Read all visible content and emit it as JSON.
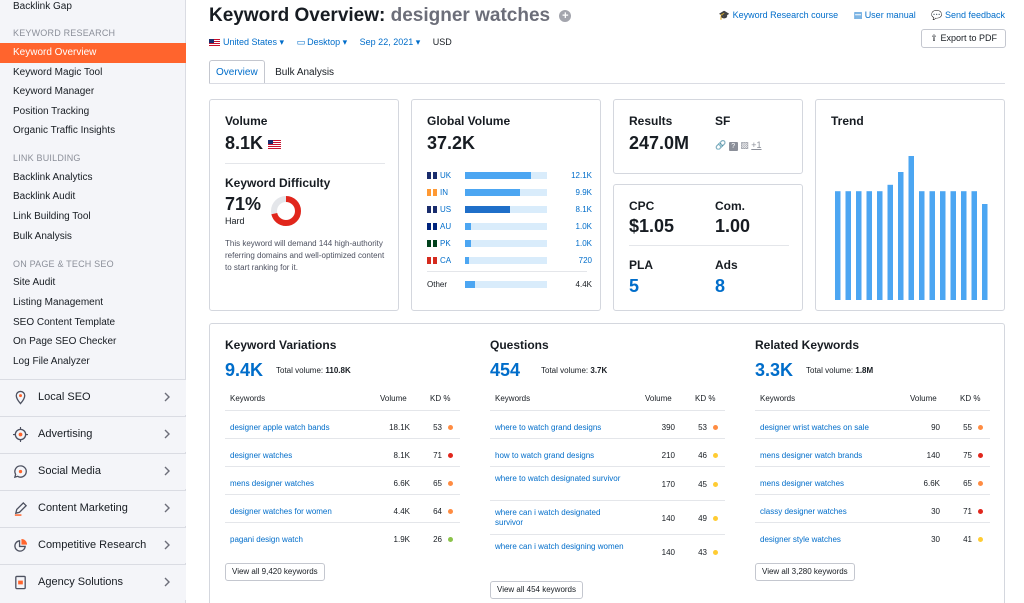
{
  "sidebar": {
    "top_item": "Backlink Gap",
    "sections": [
      {
        "title": "KEYWORD RESEARCH",
        "items": [
          "Keyword Overview",
          "Keyword Magic Tool",
          "Keyword Manager",
          "Position Tracking",
          "Organic Traffic Insights"
        ]
      },
      {
        "title": "LINK BUILDING",
        "items": [
          "Backlink Analytics",
          "Backlink Audit",
          "Link Building Tool",
          "Bulk Analysis"
        ]
      },
      {
        "title": "ON PAGE & TECH SEO",
        "items": [
          "Site Audit",
          "Listing Management",
          "SEO Content Template",
          "On Page SEO Checker",
          "Log File Analyzer"
        ]
      }
    ],
    "active_item": "Keyword Overview",
    "groups": [
      {
        "label": "Local SEO",
        "icon": "location-pin-icon"
      },
      {
        "label": "Advertising",
        "icon": "target-icon"
      },
      {
        "label": "Social Media",
        "icon": "chat-bubble-icon"
      },
      {
        "label": "Content Marketing",
        "icon": "pencil-icon"
      },
      {
        "label": "Competitive Research",
        "icon": "pie-chart-icon"
      },
      {
        "label": "Agency Solutions",
        "icon": "document-icon"
      }
    ]
  },
  "header": {
    "title_prefix": "Keyword Overview:",
    "query": "designer watches",
    "filters": {
      "country": "United States",
      "device": "Desktop",
      "date": "Sep 22, 2021",
      "currency": "USD"
    },
    "links": {
      "course": "Keyword Research course",
      "manual": "User manual",
      "feedback": "Send feedback"
    },
    "export": "Export to PDF"
  },
  "tabs": [
    "Overview",
    "Bulk Analysis"
  ],
  "volume": {
    "label": "Volume",
    "value": "8.1K"
  },
  "kd": {
    "label": "Keyword Difficulty",
    "value": "71%",
    "level": "Hard",
    "percent": 71,
    "description": "This keyword will demand 144 high-authority referring domains and well-optimized content to start ranking for it."
  },
  "global_volume": {
    "label": "Global Volume",
    "value": "37.2K",
    "countries": [
      {
        "code": "UK",
        "value": "12.1K",
        "share": 0.31
      },
      {
        "code": "IN",
        "value": "9.9K",
        "share": 0.26
      },
      {
        "code": "US",
        "value": "8.1K",
        "share": 0.21
      },
      {
        "code": "AU",
        "value": "1.0K",
        "share": 0.03
      },
      {
        "code": "PK",
        "value": "1.0K",
        "share": 0.03
      },
      {
        "code": "CA",
        "value": "720",
        "share": 0.02
      }
    ],
    "other": {
      "label": "Other",
      "value": "4.4K",
      "share": 0.12
    }
  },
  "results": {
    "label": "Results",
    "value": "247.0M",
    "sf_label": "SF",
    "sf_more": "+1"
  },
  "cpc": {
    "label": "CPC",
    "value": "$1.05",
    "com_label": "Com.",
    "com_value": "1.00",
    "pla_label": "PLA",
    "pla_value": "5",
    "ads_label": "Ads",
    "ads_value": "8"
  },
  "trend": {
    "label": "Trend",
    "values": [
      0.68,
      0.68,
      0.68,
      0.68,
      0.68,
      0.72,
      0.8,
      0.9,
      0.68,
      0.68,
      0.68,
      0.68,
      0.68,
      0.68,
      0.6
    ]
  },
  "variations": {
    "label": "Keyword Variations",
    "count": "9.4K",
    "total_label": "Total volume:",
    "total": "110.8K",
    "cols": [
      "Keywords",
      "Volume",
      "KD %"
    ],
    "rows": [
      {
        "kw": "designer apple watch bands",
        "vol": "18.1K",
        "kd": "53",
        "color": "#ff8c42"
      },
      {
        "kw": "designer watches",
        "vol": "8.1K",
        "kd": "71",
        "color": "#e1261c"
      },
      {
        "kw": "mens designer watches",
        "vol": "6.6K",
        "kd": "65",
        "color": "#ff8c42"
      },
      {
        "kw": "designer watches for women",
        "vol": "4.4K",
        "kd": "64",
        "color": "#ff8c42"
      },
      {
        "kw": "pagani design watch",
        "vol": "1.9K",
        "kd": "26",
        "color": "#8bc34a"
      }
    ],
    "view_all": "View all 9,420 keywords"
  },
  "questions": {
    "label": "Questions",
    "count": "454",
    "total_label": "Total volume:",
    "total": "3.7K",
    "cols": [
      "Keywords",
      "Volume",
      "KD %"
    ],
    "rows": [
      {
        "kw": "where to watch grand designs",
        "vol": "390",
        "kd": "53",
        "color": "#ff8c42"
      },
      {
        "kw": "how to watch grand designs",
        "vol": "210",
        "kd": "46",
        "color": "#ffcc33"
      },
      {
        "kw": "where to watch designated survivor",
        "vol": "170",
        "kd": "45",
        "color": "#ffcc33"
      },
      {
        "kw": "where can i watch designated survivor",
        "vol": "140",
        "kd": "49",
        "color": "#ffcc33"
      },
      {
        "kw": "where can i watch designing women",
        "vol": "140",
        "kd": "43",
        "color": "#ffcc33"
      }
    ],
    "view_all": "View all 454 keywords"
  },
  "related": {
    "label": "Related Keywords",
    "count": "3.3K",
    "total_label": "Total volume:",
    "total": "1.8M",
    "cols": [
      "Keywords",
      "Volume",
      "KD %"
    ],
    "rows": [
      {
        "kw": "designer wrist watches on sale",
        "vol": "90",
        "kd": "55",
        "color": "#ff8c42"
      },
      {
        "kw": "mens designer watch brands",
        "vol": "140",
        "kd": "75",
        "color": "#e1261c"
      },
      {
        "kw": "mens designer watches",
        "vol": "6.6K",
        "kd": "65",
        "color": "#ff8c42"
      },
      {
        "kw": "classy designer watches",
        "vol": "30",
        "kd": "71",
        "color": "#e1261c"
      },
      {
        "kw": "designer style watches",
        "vol": "30",
        "kd": "41",
        "color": "#ffcc33"
      }
    ],
    "view_all": "View all 3,280 keywords"
  },
  "colors": {
    "accent": "#ff642d",
    "link": "#006dca",
    "bar": "#4ca6f2",
    "hard": "#e1261c"
  }
}
